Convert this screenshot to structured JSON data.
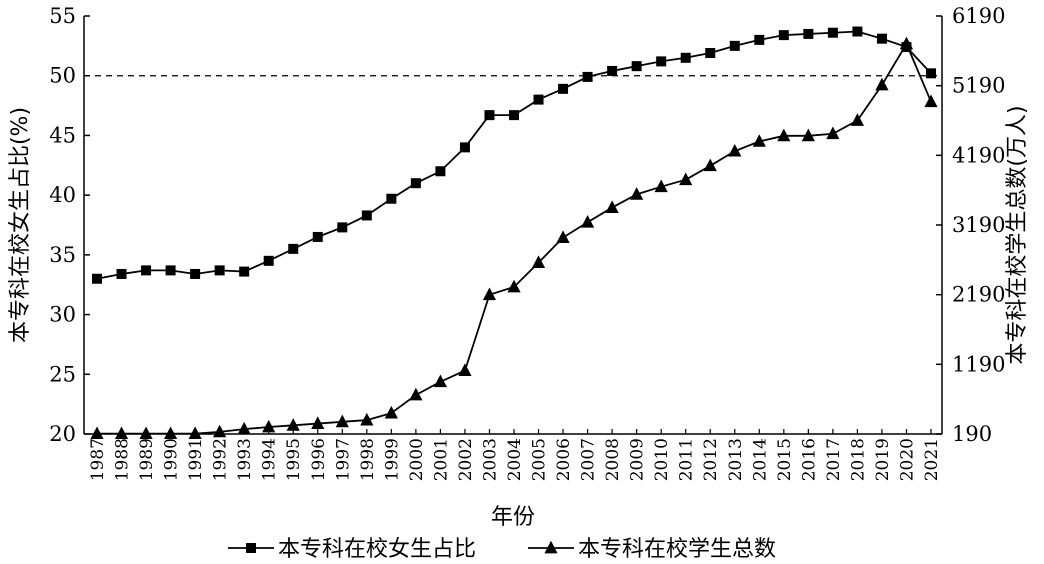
{
  "chart_data": {
    "type": "line",
    "xlabel": "年份",
    "ylabel_left": "本专科在校女生占比(%)",
    "ylabel_right": "本专科在校学生总数(万人)",
    "ylim_left": [
      20,
      55
    ],
    "yticks_left": [
      "20",
      "25",
      "30",
      "35",
      "40",
      "45",
      "50",
      "55"
    ],
    "ylim_right": [
      190,
      6190
    ],
    "yticks_right": [
      "190",
      "1190",
      "2190",
      "3190",
      "4190",
      "5190",
      "6190"
    ],
    "reference_line": {
      "axis": "left",
      "value": 50,
      "style": "dashed"
    },
    "categories": [
      "1987",
      "1988",
      "1989",
      "1990",
      "1991",
      "1992",
      "1993",
      "1994",
      "1995",
      "1996",
      "1997",
      "1998",
      "1999",
      "2000",
      "2001",
      "2002",
      "2003",
      "2004",
      "2005",
      "2006",
      "2007",
      "2008",
      "2009",
      "2010",
      "2011",
      "2012",
      "2013",
      "2014",
      "2015",
      "2016",
      "2017",
      "2018",
      "2019",
      "2020",
      "2021"
    ],
    "series": [
      {
        "name": "本专科在校女生占比",
        "axis": "left",
        "marker": "square",
        "values": [
          33.0,
          33.4,
          33.7,
          33.7,
          33.4,
          33.7,
          33.6,
          34.5,
          35.5,
          36.5,
          37.3,
          38.3,
          39.7,
          41.0,
          42.0,
          44.0,
          46.7,
          46.7,
          48.0,
          48.9,
          49.9,
          50.4,
          50.8,
          51.2,
          51.5,
          51.9,
          52.5,
          53.0,
          53.4,
          53.5,
          53.6,
          53.7,
          53.1,
          52.4,
          50.2
        ]
      },
      {
        "name": "本专科在校学生总数",
        "axis": "right",
        "marker": "triangle",
        "values": [
          195,
          195,
          195,
          195,
          195,
          220,
          260,
          290,
          315,
          340,
          365,
          390,
          490,
          750,
          940,
          1100,
          2190,
          2300,
          2650,
          3010,
          3230,
          3440,
          3630,
          3740,
          3840,
          4040,
          4250,
          4390,
          4470,
          4470,
          4500,
          4690,
          5200,
          5790,
          4960
        ]
      }
    ],
    "legend": [
      "本专科在校女生占比",
      "本专科在校学生总数"
    ],
    "legend_position": "bottom",
    "grid": false
  }
}
